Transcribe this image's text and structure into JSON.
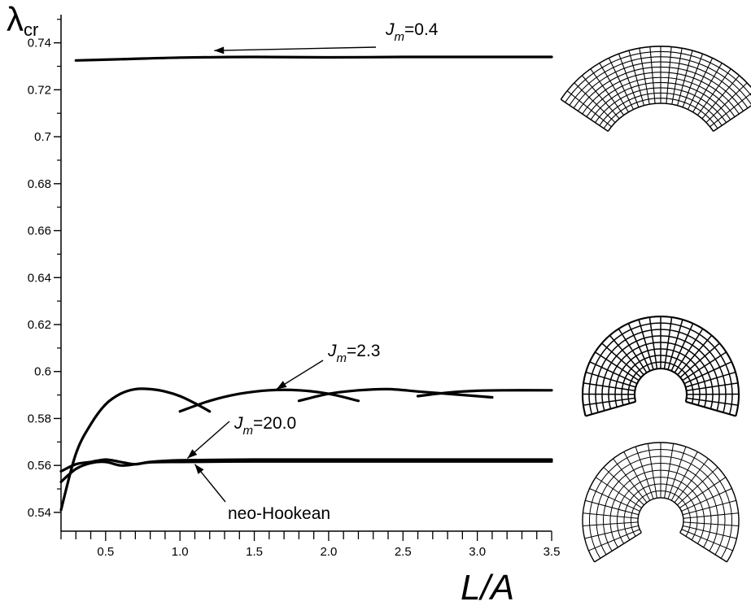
{
  "chart_data": {
    "type": "line",
    "xlabel": "L/A",
    "ylabel": "λcr",
    "ylabel_main": "λ",
    "ylabel_sub": "cr",
    "xlim": [
      0.2,
      3.5
    ],
    "ylim": [
      0.532,
      0.752
    ],
    "x_ticks": [
      0.5,
      1.0,
      1.5,
      2.0,
      2.5,
      3.0,
      3.5
    ],
    "x_tick_labels": [
      "0.5",
      "1.0",
      "1.5",
      "2.0",
      "2.5",
      "3.0",
      "3.5"
    ],
    "y_ticks": [
      0.54,
      0.56,
      0.58,
      0.6,
      0.62,
      0.64,
      0.66,
      0.68,
      0.7,
      0.72,
      0.74
    ],
    "y_tick_labels": [
      "0.54",
      "0.56",
      "0.58",
      "0.6",
      "0.62",
      "0.64",
      "0.66",
      "0.68",
      "0.7",
      "0.72",
      "0.74"
    ],
    "grid": false,
    "series": [
      {
        "name": "Jm=0.4",
        "segments": [
          {
            "x": [
              0.3,
              0.6,
              1.0,
              1.5,
              2.0,
              2.5,
              3.0,
              3.5
            ],
            "y": [
              0.7325,
              0.733,
              0.7337,
              0.734,
              0.7338,
              0.734,
              0.734,
              0.734
            ]
          }
        ]
      },
      {
        "name": "Jm=2.3",
        "segments": [
          {
            "x": [
              0.2,
              0.3,
              0.4,
              0.5,
              0.6,
              0.7,
              0.8,
              0.9,
              1.0,
              1.1,
              1.2
            ],
            "y": [
              0.541,
              0.565,
              0.5775,
              0.586,
              0.5905,
              0.5925,
              0.5925,
              0.5915,
              0.5895,
              0.5865,
              0.583
            ]
          },
          {
            "x": [
              1.0,
              1.2,
              1.4,
              1.6,
              1.8,
              2.0,
              2.2
            ],
            "y": [
              0.583,
              0.5875,
              0.5905,
              0.592,
              0.592,
              0.5905,
              0.5875
            ]
          },
          {
            "x": [
              1.8,
              2.0,
              2.2,
              2.4,
              2.6,
              2.8,
              3.0,
              3.1
            ],
            "y": [
              0.5875,
              0.5905,
              0.592,
              0.5925,
              0.5915,
              0.5905,
              0.5895,
              0.589
            ]
          },
          {
            "x": [
              2.6,
              2.8,
              3.0,
              3.2,
              3.5
            ],
            "y": [
              0.5895,
              0.591,
              0.5918,
              0.592,
              0.592
            ]
          }
        ]
      },
      {
        "name": "Jm=20.0",
        "segments": [
          {
            "x": [
              0.2,
              0.3,
              0.4,
              0.5,
              0.6,
              0.7,
              0.8,
              1.0,
              1.5,
              2.0,
              2.5,
              3.0,
              3.5
            ],
            "y": [
              0.5575,
              0.5605,
              0.5615,
              0.5625,
              0.5615,
              0.5605,
              0.5615,
              0.5622,
              0.5625,
              0.5625,
              0.5625,
              0.5625,
              0.5625
            ]
          }
        ]
      },
      {
        "name": "neo-Hookean",
        "segments": [
          {
            "x": [
              0.2,
              0.3,
              0.4,
              0.5,
              0.6,
              0.7,
              0.8,
              1.0,
              1.5,
              2.0,
              2.5,
              3.0,
              3.5
            ],
            "y": [
              0.553,
              0.5585,
              0.561,
              0.5615,
              0.56,
              0.5605,
              0.5613,
              0.5615,
              0.5617,
              0.5617,
              0.5617,
              0.5617,
              0.5617
            ]
          }
        ]
      }
    ],
    "annotations": [
      {
        "id": "jm04",
        "label_main": "J",
        "label_sub": "m",
        "label_rest": "=0.4",
        "arrow_to": [
          1.23,
          0.7367
        ]
      },
      {
        "id": "jm23",
        "label_main": "J",
        "label_sub": "m",
        "label_rest": "=2.3",
        "arrow_to": [
          1.65,
          0.5925
        ]
      },
      {
        "id": "jm200",
        "label_main": "J",
        "label_sub": "m",
        "label_rest": "=20.0",
        "arrow_to": [
          1.05,
          0.563
        ]
      },
      {
        "id": "neo",
        "label_text": "neo-Hookean",
        "arrow_to": [
          1.1,
          0.5605
        ]
      }
    ]
  },
  "insets": [
    {
      "name": "mesh-shallow-arc-icon",
      "shape": "shallow-arc"
    },
    {
      "name": "mesh-open-ring-icon",
      "shape": "open-ring"
    },
    {
      "name": "mesh-wide-ring-icon",
      "shape": "wide-ring"
    }
  ]
}
